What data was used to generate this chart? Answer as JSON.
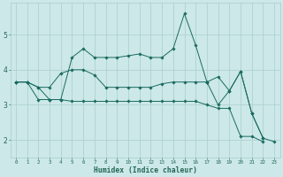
{
  "xlabel": "Humidex (Indice chaleur)",
  "x_values": [
    0,
    1,
    2,
    3,
    4,
    5,
    6,
    7,
    8,
    9,
    10,
    11,
    12,
    13,
    14,
    15,
    16,
    17,
    18,
    19,
    20,
    21,
    22,
    23
  ],
  "line_spiky": [
    3.65,
    3.65,
    3.5,
    3.15,
    3.15,
    4.35,
    4.6,
    4.35,
    4.35,
    4.35,
    4.4,
    4.45,
    4.35,
    4.35,
    4.6,
    5.6,
    4.7,
    3.65,
    null,
    null,
    null,
    null,
    null,
    null
  ],
  "line_upper": [
    3.65,
    3.65,
    3.5,
    3.5,
    3.9,
    4.0,
    4.0,
    3.85,
    3.5,
    3.5,
    3.5,
    3.5,
    3.5,
    3.6,
    3.65,
    3.65,
    3.65,
    3.65,
    3.8,
    3.4,
    3.95,
    2.75,
    2.05,
    null
  ],
  "line_lower": [
    3.65,
    3.65,
    3.15,
    3.15,
    3.15,
    3.1,
    3.1,
    3.1,
    3.1,
    3.1,
    3.1,
    3.1,
    3.1,
    3.1,
    3.1,
    3.1,
    3.1,
    3.0,
    2.9,
    2.9,
    2.1,
    2.1,
    1.95,
    null
  ],
  "line_tail": [
    null,
    null,
    null,
    null,
    null,
    null,
    null,
    null,
    null,
    null,
    null,
    null,
    null,
    null,
    null,
    null,
    null,
    3.65,
    3.0,
    3.4,
    3.95,
    2.75,
    2.05,
    1.95
  ],
  "bg_color": "#cce8e8",
  "line_color": "#1a6b60",
  "grid_color": "#aacece",
  "ylim": [
    1.5,
    5.9
  ],
  "yticks": [
    2,
    3,
    4,
    5
  ],
  "xlim": [
    -0.5,
    23.5
  ]
}
